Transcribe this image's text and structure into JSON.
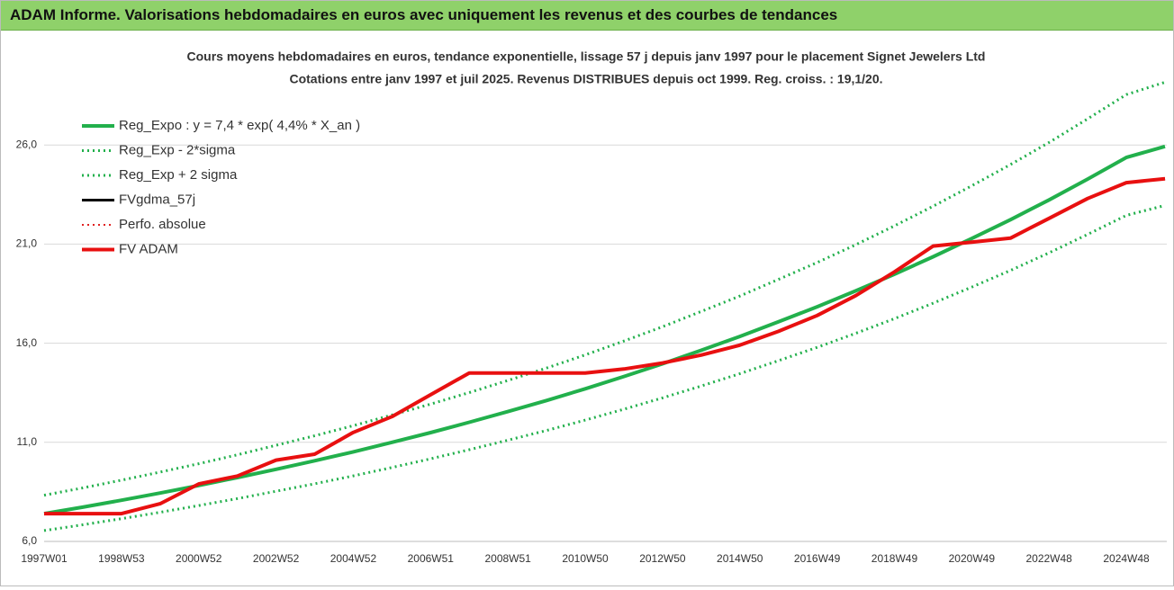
{
  "page_title": "ADAM Informe. Valorisations hebdomadaires en euros avec uniquement les revenus et des courbes de tendances",
  "chart_data": {
    "type": "line",
    "title": "Cours moyens hebdomadaires en euros, tendance exponentielle, lissage 57 j depuis janv 1997  pour le placement Signet Jewelers Ltd",
    "subtitle": "Cotations entre janv 1997 et juil 2025. Revenus DISTRIBUES depuis oct 1999. Reg. croiss. : 19,1/20.",
    "categories": [
      "1997W01",
      null,
      "1998W53",
      null,
      "2000W52",
      null,
      "2002W52",
      null,
      "2004W52",
      null,
      "2006W51",
      null,
      "2008W51",
      null,
      "2010W50",
      null,
      "2012W50",
      null,
      "2014W50",
      null,
      "2016W49",
      null,
      "2018W49",
      null,
      "2020W49",
      null,
      "2022W48",
      null,
      "2024W48",
      null
    ],
    "ylim": [
      6,
      31.5
    ],
    "yticks": [
      {
        "value": 6,
        "label": "6,0"
      },
      {
        "value": 11,
        "label": "11,0"
      },
      {
        "value": 16,
        "label": "16,0"
      },
      {
        "value": 21,
        "label": "21,0"
      },
      {
        "value": 26,
        "label": "26,0"
      }
    ],
    "grid": true,
    "legend": "top-left",
    "series": [
      {
        "name": "Reg_Exp - 2*sigma",
        "color": "#22b04c",
        "dash": "dotted",
        "width": 3,
        "values": [
          6.55,
          6.84,
          7.15,
          7.47,
          7.81,
          8.16,
          8.53,
          8.91,
          9.31,
          9.73,
          10.17,
          10.63,
          11.11,
          11.6,
          12.12,
          12.67,
          13.24,
          13.84,
          14.46,
          15.12,
          15.79,
          16.5,
          17.24,
          18.02,
          18.83,
          19.67,
          20.56,
          21.49,
          22.45,
          22.95
        ]
      },
      {
        "name": "Reg_Exp + 2 sigma",
        "color": "#22b04c",
        "dash": "dotted",
        "width": 3,
        "values": [
          8.33,
          8.7,
          9.09,
          9.5,
          9.92,
          10.37,
          10.85,
          11.33,
          11.84,
          12.38,
          12.93,
          13.51,
          14.12,
          14.75,
          15.41,
          16.11,
          16.83,
          17.6,
          18.38,
          19.22,
          20.07,
          20.97,
          21.92,
          22.91,
          23.94,
          25.01,
          26.13,
          27.32,
          28.54,
          29.17
        ]
      },
      {
        "name": "Reg_Expo : y = 7,4 * exp( 4,4% *  X_an )",
        "color": "#22b04c",
        "dash": "solid",
        "width": 4,
        "values": [
          7.4,
          7.73,
          8.08,
          8.44,
          8.82,
          9.22,
          9.64,
          10.07,
          10.52,
          11.0,
          11.49,
          12.01,
          12.55,
          13.11,
          13.7,
          14.32,
          14.96,
          15.64,
          16.34,
          17.08,
          17.84,
          18.64,
          19.48,
          20.36,
          21.28,
          22.23,
          23.23,
          24.28,
          25.37,
          25.93
        ]
      },
      {
        "name": "FVgdma_57j",
        "color": "#000000",
        "dash": "solid",
        "width": 3,
        "values": [
          7.4,
          7.4,
          7.4,
          7.9,
          8.9,
          9.3,
          10.1,
          10.4,
          11.5,
          12.3,
          13.4,
          14.5,
          14.5,
          14.5,
          14.5,
          14.7,
          15.0,
          15.4,
          15.9,
          16.6,
          17.4,
          18.4,
          19.6,
          20.9,
          21.1,
          21.3,
          22.3,
          23.3,
          24.1,
          24.3
        ]
      },
      {
        "name": "Perfo. absolue",
        "color": "#e02020",
        "dash": "dotted",
        "width": 2,
        "values": [
          7.4,
          7.4,
          7.4,
          7.9,
          8.9,
          9.3,
          10.1,
          10.4,
          11.5,
          12.3,
          13.4,
          14.5,
          14.5,
          14.5,
          14.5,
          14.7,
          15.0,
          15.4,
          15.9,
          16.6,
          17.4,
          18.4,
          19.6,
          20.9,
          21.1,
          21.3,
          22.3,
          23.3,
          24.1,
          24.3
        ]
      },
      {
        "name": "FV ADAM",
        "color": "#e81010",
        "dash": "solid",
        "width": 4,
        "values": [
          7.4,
          7.4,
          7.4,
          7.9,
          8.9,
          9.3,
          10.1,
          10.4,
          11.5,
          12.3,
          13.4,
          14.5,
          14.5,
          14.5,
          14.5,
          14.7,
          15.0,
          15.4,
          15.9,
          16.6,
          17.4,
          18.4,
          19.6,
          20.9,
          21.1,
          21.3,
          22.3,
          23.3,
          24.1,
          24.3
        ]
      }
    ]
  }
}
